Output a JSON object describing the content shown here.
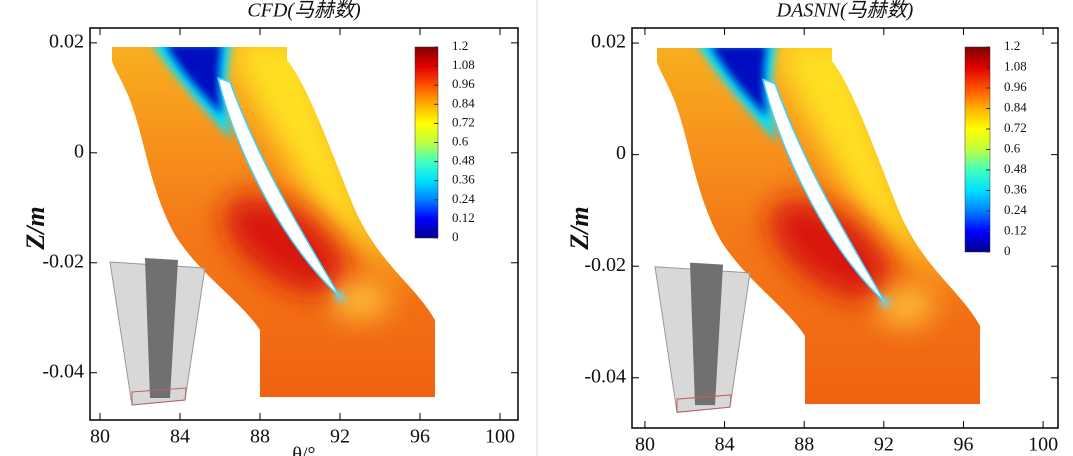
{
  "chart_data": [
    {
      "type": "contour",
      "title": "CFD(马赫数)",
      "xlabel": "θ/°",
      "ylabel": "Z/m",
      "xlim": [
        79.5,
        100.9
      ],
      "xticks": [
        80,
        84,
        88,
        92,
        96,
        100
      ],
      "ylim": [
        -0.0486,
        0.0227
      ],
      "yticks": [
        -0.04,
        -0.02,
        0,
        0.02
      ],
      "colorbar": {
        "lim": [
          0,
          1.2
        ],
        "ticks": [
          0,
          0.12,
          0.24,
          0.36,
          0.48,
          0.6,
          0.72,
          0.84,
          0.96,
          1.08,
          1.2
        ],
        "colors": [
          "#00008b",
          "#0000ff",
          "#0080ff",
          "#00e0ff",
          "#40ffc0",
          "#c0ff40",
          "#ffff00",
          "#ffb000",
          "#ff5000",
          "#e00000",
          "#800000"
        ]
      }
    },
    {
      "type": "contour",
      "title": "DASNN(马赫数)",
      "ylabel": "Z/m",
      "xlim": [
        79.35,
        100.75
      ],
      "xticks": [
        80,
        84,
        88,
        92,
        96,
        100
      ],
      "ylim": [
        -0.049,
        0.0227
      ],
      "yticks": [
        -0.04,
        -0.02,
        0,
        0.02
      ],
      "colorbar": {
        "lim": [
          0,
          1.2
        ],
        "ticks": [
          0,
          0.12,
          0.24,
          0.36,
          0.48,
          0.6,
          0.72,
          0.84,
          0.96,
          1.08,
          1.2
        ],
        "colors": [
          "#00008b",
          "#0000ff",
          "#0080ff",
          "#00e0ff",
          "#40ffc0",
          "#c0ff40",
          "#ffff00",
          "#ffb000",
          "#ff5000",
          "#e00000",
          "#800000"
        ]
      }
    }
  ]
}
